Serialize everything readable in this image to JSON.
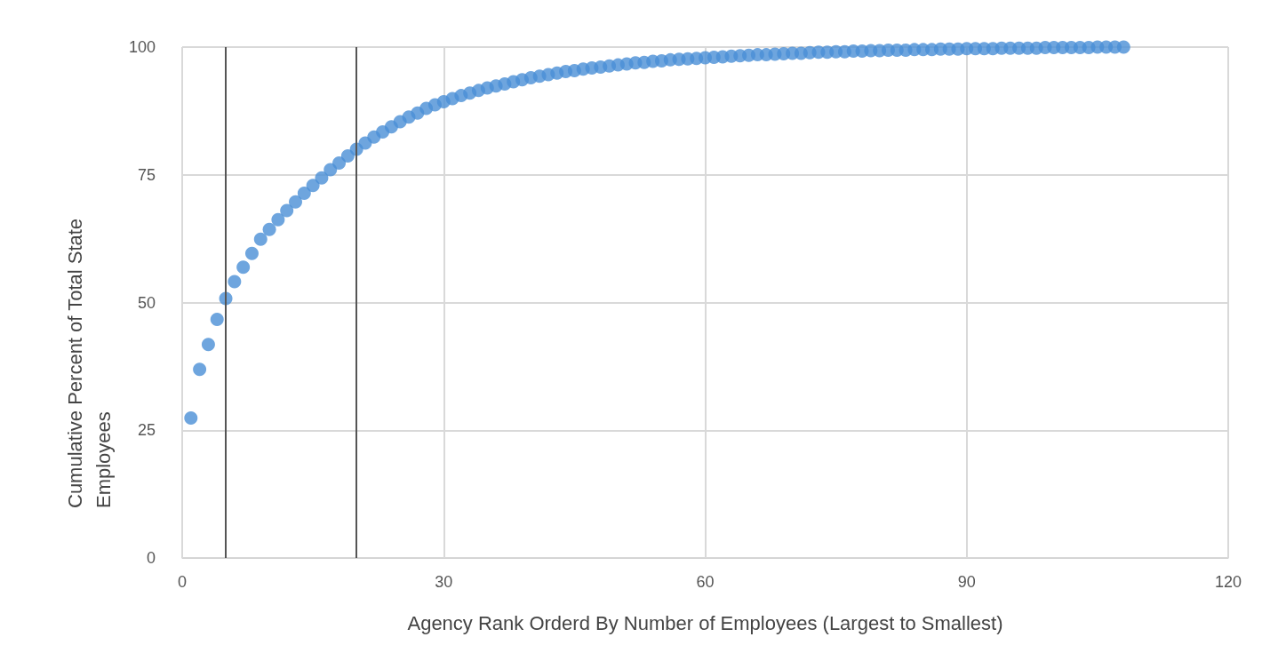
{
  "chart_data": {
    "type": "scatter",
    "xlabel": "Agency Rank Orderd By Number of Employees (Largest to Smallest)",
    "ylabel": "Cumulative Percent of Total State Employees",
    "xlim": [
      0,
      120
    ],
    "xticks": [
      0,
      30,
      60,
      90,
      120
    ],
    "ylim": [
      0,
      100
    ],
    "yticks": [
      0,
      25,
      50,
      75,
      100
    ],
    "grid": true,
    "marker": "circle",
    "ref_lines": [
      {
        "axis": "x",
        "value": 5,
        "color": "#555555"
      },
      {
        "axis": "x",
        "value": 20,
        "color": "#555555"
      }
    ],
    "series": [
      {
        "color": "#4a8fd6",
        "x": [
          1,
          2,
          3,
          4,
          5,
          6,
          7,
          8,
          9,
          10,
          11,
          12,
          13,
          14,
          15,
          16,
          17,
          18,
          19,
          20,
          21,
          22,
          23,
          24,
          25,
          26,
          27,
          28,
          29,
          30,
          31,
          32,
          33,
          34,
          35,
          36,
          37,
          38,
          39,
          40,
          41,
          42,
          43,
          44,
          45,
          46,
          47,
          48,
          49,
          50,
          51,
          52,
          53,
          54,
          55,
          56,
          57,
          58,
          59,
          60,
          61,
          62,
          63,
          64,
          65,
          66,
          67,
          68,
          69,
          70,
          71,
          72,
          73,
          74,
          75,
          76,
          77,
          78,
          79,
          80,
          81,
          82,
          83,
          84,
          85,
          86,
          87,
          88,
          89,
          90,
          91,
          92,
          93,
          94,
          95,
          96,
          97,
          98,
          99,
          100,
          101,
          102,
          103,
          104,
          105,
          106,
          107,
          108
        ],
        "values": [
          27.4,
          36.9,
          41.8,
          46.7,
          50.8,
          54.1,
          56.9,
          59.6,
          62.4,
          64.3,
          66.2,
          68.0,
          69.7,
          71.4,
          72.9,
          74.4,
          76.0,
          77.3,
          78.7,
          80.0,
          81.2,
          82.4,
          83.4,
          84.4,
          85.4,
          86.3,
          87.1,
          88.0,
          88.7,
          89.3,
          89.9,
          90.5,
          91.0,
          91.5,
          92.0,
          92.4,
          92.8,
          93.2,
          93.6,
          94.0,
          94.3,
          94.6,
          94.9,
          95.2,
          95.4,
          95.7,
          95.9,
          96.1,
          96.3,
          96.5,
          96.7,
          96.9,
          97.0,
          97.2,
          97.3,
          97.5,
          97.6,
          97.7,
          97.8,
          97.9,
          98.0,
          98.1,
          98.2,
          98.3,
          98.4,
          98.5,
          98.5,
          98.6,
          98.7,
          98.8,
          98.8,
          98.9,
          99.0,
          99.0,
          99.1,
          99.1,
          99.2,
          99.2,
          99.3,
          99.3,
          99.4,
          99.4,
          99.4,
          99.5,
          99.5,
          99.5,
          99.6,
          99.6,
          99.6,
          99.7,
          99.7,
          99.7,
          99.7,
          99.8,
          99.8,
          99.8,
          99.8,
          99.8,
          99.9,
          99.9,
          99.9,
          99.9,
          99.9,
          99.9,
          100,
          100,
          100,
          100
        ]
      }
    ]
  }
}
